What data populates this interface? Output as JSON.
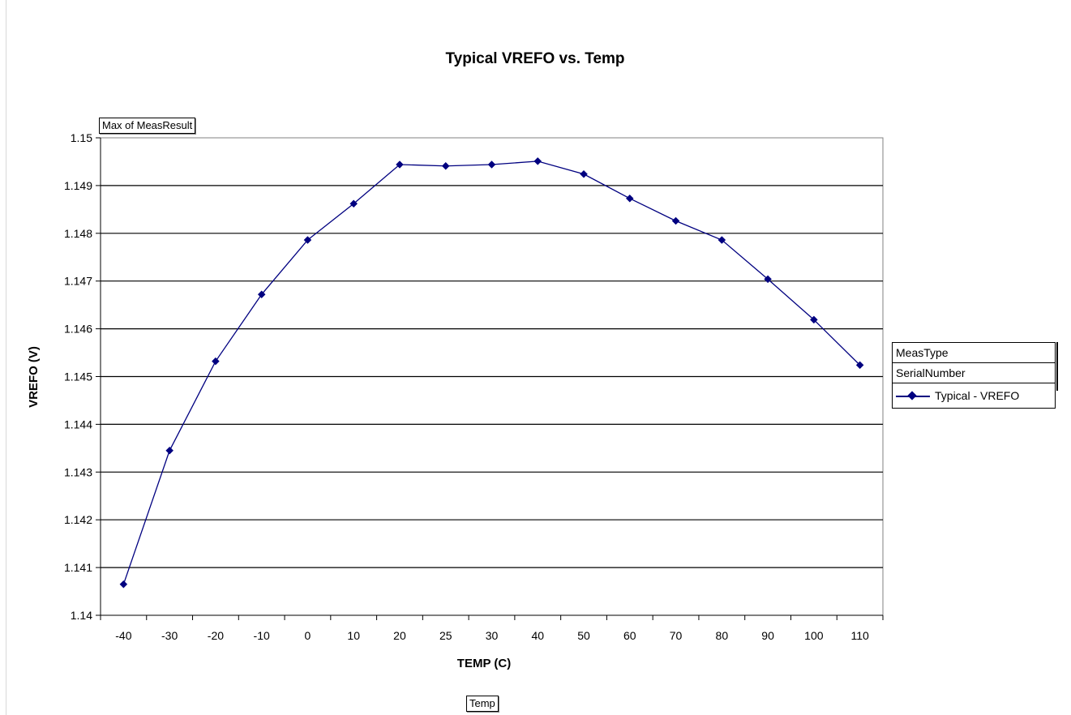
{
  "chart_data": {
    "type": "line",
    "title": "Typical VREFO vs. Temp",
    "xlabel": "TEMP (C)",
    "ylabel": "VREFO (V)",
    "categories": [
      "-40",
      "-30",
      "-20",
      "-10",
      "0",
      "10",
      "20",
      "25",
      "30",
      "40",
      "50",
      "60",
      "70",
      "80",
      "90",
      "100",
      "110"
    ],
    "series": [
      {
        "name": "Typical - VREFO",
        "values": [
          1.14065,
          1.14345,
          1.14532,
          1.14672,
          1.14786,
          1.14862,
          1.14944,
          1.14941,
          1.14944,
          1.14951,
          1.14924,
          1.14873,
          1.14826,
          1.14786,
          1.14704,
          1.14619,
          1.14524
        ]
      }
    ],
    "ylim": [
      1.14,
      1.15
    ],
    "yticks": [
      "1.14",
      "1.141",
      "1.142",
      "1.143",
      "1.144",
      "1.145",
      "1.146",
      "1.147",
      "1.148",
      "1.149",
      "1.15"
    ],
    "grid": true,
    "legend_position": "right",
    "line_color": "#000080",
    "marker": "diamond"
  },
  "pivot_fields": {
    "data_field": "Max of MeasResult",
    "category_field": "Temp",
    "series_fields": [
      "MeasType",
      "SerialNumber"
    ]
  }
}
